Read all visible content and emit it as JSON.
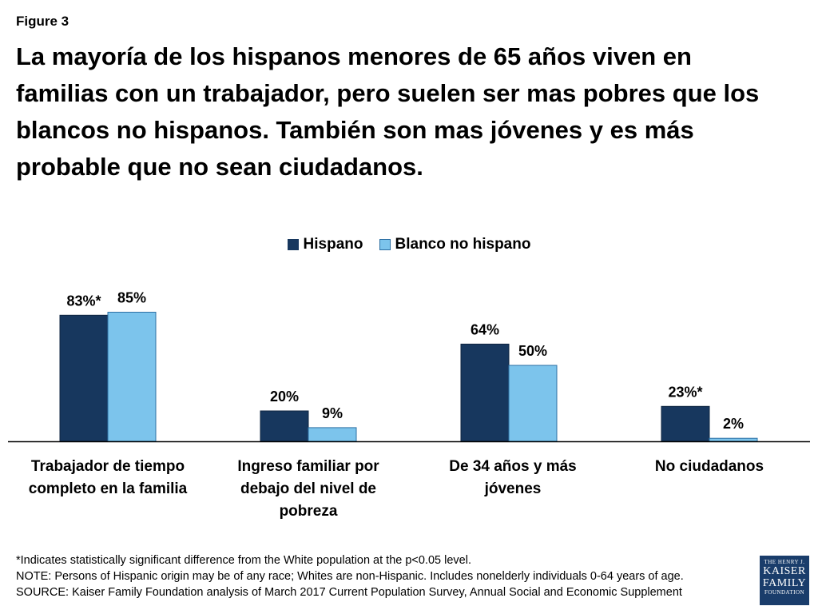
{
  "figure_label": "Figure 3",
  "title": "La mayoría de los hispanos menores de 65 años viven en familias con un trabajador, pero suelen ser mas pobres que los blancos no hispanos. También son mas jóvenes y es más probable que no sean ciudadanos.",
  "colors": {
    "hispano": "#17375e",
    "blanco": "#7cc4ec",
    "axis": "#000000"
  },
  "chart_data": {
    "type": "bar",
    "title": "",
    "xlabel": "",
    "ylabel": "",
    "ylim": [
      0,
      100
    ],
    "grid": false,
    "legend_position": "top-center",
    "categories": [
      "Trabajador de tiempo completo en la familia",
      "Ingreso familiar por debajo del nivel de pobreza",
      "De 34 años y más jóvenes",
      "No ciudadanos"
    ],
    "series": [
      {
        "name": "Hispano",
        "values": [
          83,
          20,
          64,
          23
        ],
        "labels": [
          "83%*",
          "20%",
          "64%",
          "23%*"
        ]
      },
      {
        "name": "Blanco no hispano",
        "values": [
          85,
          9,
          50,
          2
        ],
        "labels": [
          "85%",
          "9%",
          "50%",
          "2%"
        ]
      }
    ]
  },
  "notes": [
    "*Indicates statistically significant difference from the White population at the p<0.05 level.",
    "NOTE: Persons of Hispanic origin may be of any race; Whites are non-Hispanic. Includes nonelderly individuals 0-64 years of age.",
    "SOURCE: Kaiser Family Foundation analysis of March 2017 Current Population Survey, Annual Social and Economic Supplement"
  ],
  "logo": {
    "line1": "THE HENRY J.",
    "line2": "KAISER",
    "line3": "FAMILY",
    "line4": "FOUNDATION"
  }
}
